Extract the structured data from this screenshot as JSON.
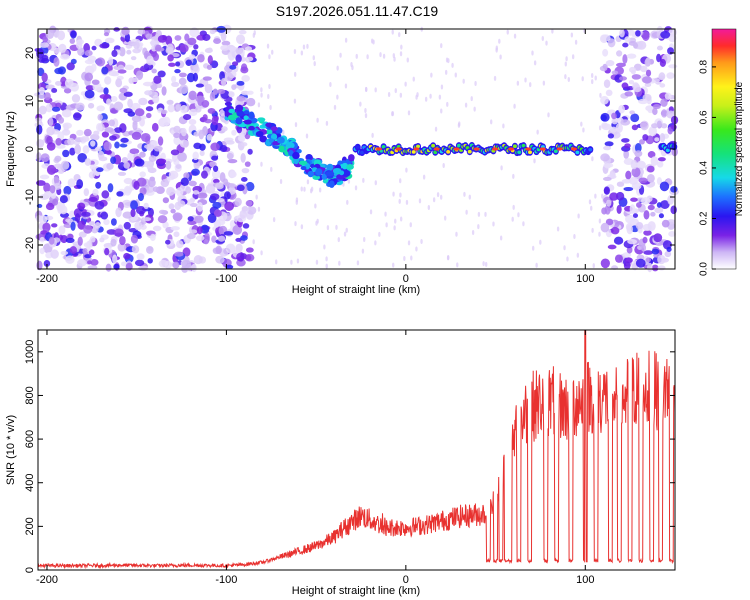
{
  "title": "S197.2026.051.11.47.C19",
  "colors": {
    "trace": "#e8312f",
    "axis": "#000000",
    "background": "#ffffff",
    "scatter": "#6a1fe0",
    "scatter_light": "#b79af2"
  },
  "colorbar": {
    "label": "Normalized spectral amplitude",
    "ticks": [
      "0.0",
      "0.2",
      "0.4",
      "0.6",
      "0.8"
    ],
    "tick_values": [
      0.0,
      0.2,
      0.4,
      0.6,
      0.8
    ],
    "range": [
      0,
      0.95
    ]
  },
  "chart_data": [
    {
      "type": "heatmap",
      "name": "spectrogram",
      "xlabel": "Height of straight line (km)",
      "ylabel": "Frequency (Hz)",
      "xlim": [
        -205,
        150
      ],
      "ylim": [
        -25,
        25
      ],
      "xticks": [
        -200,
        -100,
        0,
        100
      ],
      "xtick_labels": [
        "-200",
        "-100",
        "0",
        "100"
      ],
      "yticks": [
        -20,
        -10,
        0,
        10,
        20
      ],
      "ytick_labels": [
        "-20",
        "-10",
        "0",
        "10",
        "20"
      ],
      "signal_band_center_hz": 0,
      "noise_regions_km": [
        [
          -205,
          -85
        ],
        [
          110,
          150
        ]
      ],
      "descending_track": {
        "x": [
          -100,
          -85,
          -70,
          -55,
          -40,
          -30
        ],
        "y": [
          8,
          5,
          2,
          -3,
          -6,
          -3
        ]
      }
    },
    {
      "type": "line",
      "name": "snr",
      "xlabel": "Height of straight line (km)",
      "ylabel": "SNR (10 * v/v)",
      "xlim": [
        -205,
        150
      ],
      "ylim": [
        0,
        1100
      ],
      "xticks": [
        -200,
        -100,
        0,
        100
      ],
      "xtick_labels": [
        "-200",
        "-100",
        "0",
        "100"
      ],
      "yticks": [
        0,
        200,
        400,
        600,
        800,
        1000
      ],
      "ytick_labels": [
        "0",
        "200",
        "400",
        "600",
        "800",
        "1000"
      ],
      "x": [
        -205,
        -180,
        -160,
        -140,
        -120,
        -100,
        -90,
        -80,
        -70,
        -60,
        -50,
        -40,
        -35,
        -30,
        -25,
        -20,
        -15,
        -10,
        0,
        10,
        20,
        30,
        40,
        45,
        48,
        52,
        55,
        60,
        62,
        65,
        70,
        80,
        90,
        100,
        110,
        120,
        130,
        140,
        150
      ],
      "y": [
        20,
        20,
        22,
        20,
        22,
        20,
        25,
        35,
        60,
        85,
        110,
        150,
        190,
        220,
        250,
        230,
        210,
        195,
        195,
        205,
        225,
        245,
        255,
        260,
        290,
        380,
        470,
        560,
        650,
        700,
        750,
        780,
        740,
        800,
        790,
        780,
        840,
        820,
        840
      ],
      "dropouts_km": [
        46,
        50,
        53,
        56,
        58,
        63,
        69,
        78,
        84,
        92,
        100,
        106,
        114,
        119,
        125,
        131,
        137,
        142,
        148
      ],
      "dropout_level": 35,
      "spike": {
        "x": 100,
        "y": 1100
      }
    }
  ]
}
